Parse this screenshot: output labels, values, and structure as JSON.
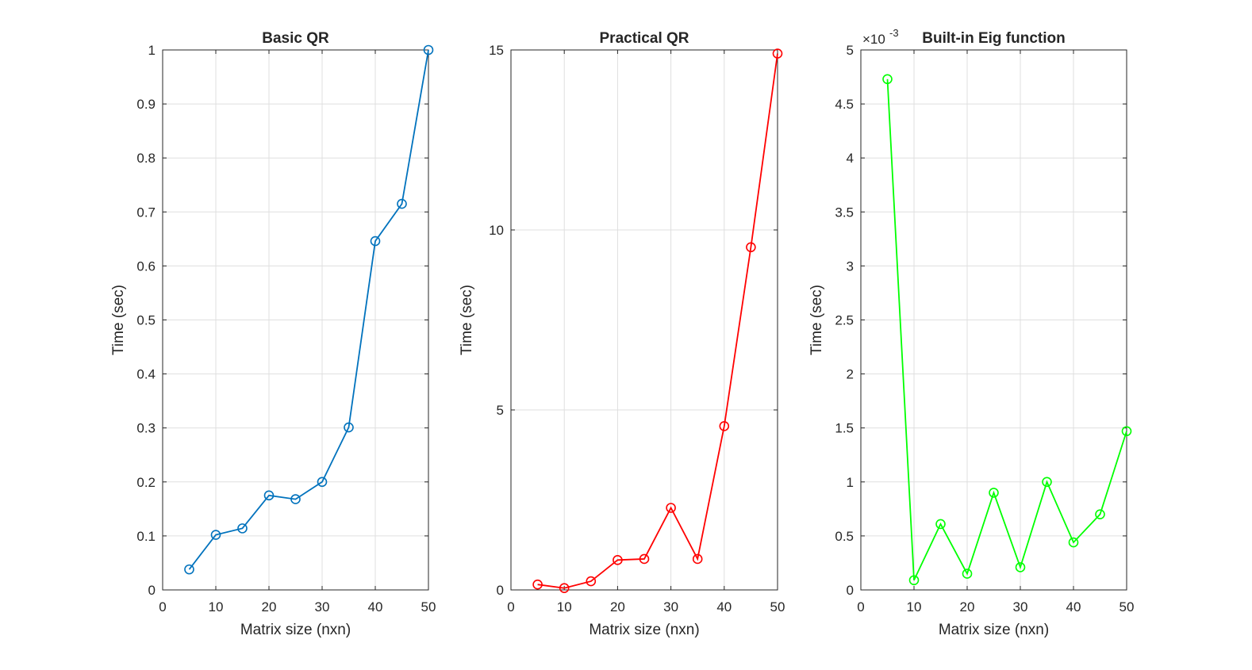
{
  "chart_data": [
    {
      "type": "line",
      "title": "Basic QR",
      "xlabel": "Matrix size (nxn)",
      "ylabel": "Time (sec)",
      "xlim": [
        0,
        50
      ],
      "ylim": [
        0,
        1
      ],
      "xticks": [
        0,
        10,
        20,
        30,
        40,
        50
      ],
      "yticks": [
        0,
        0.1,
        0.2,
        0.3,
        0.4,
        0.5,
        0.6,
        0.7,
        0.8,
        0.9,
        1
      ],
      "ytick_labels": [
        "0",
        "0.1",
        "0.2",
        "0.3",
        "0.4",
        "0.5",
        "0.6",
        "0.7",
        "0.8",
        "0.9",
        "1"
      ],
      "exponent_label": "",
      "grid": true,
      "marker": "circle",
      "series": [
        {
          "color": "#0072BD",
          "x": [
            5,
            10,
            15,
            20,
            25,
            30,
            35,
            40,
            45,
            50
          ],
          "y": [
            0.038,
            0.102,
            0.114,
            0.175,
            0.168,
            0.2,
            0.301,
            0.646,
            0.715,
            1.0
          ]
        }
      ]
    },
    {
      "type": "line",
      "title": "Practical QR",
      "xlabel": "Matrix size (nxn)",
      "ylabel": "Time (sec)",
      "xlim": [
        0,
        50
      ],
      "ylim": [
        0,
        15
      ],
      "xticks": [
        0,
        10,
        20,
        30,
        40,
        50
      ],
      "yticks": [
        0,
        5,
        10,
        15
      ],
      "ytick_labels": [
        "0",
        "5",
        "10",
        "15"
      ],
      "exponent_label": "",
      "grid": true,
      "marker": "circle",
      "series": [
        {
          "color": "#FF0000",
          "x": [
            5,
            10,
            15,
            20,
            25,
            30,
            35,
            40,
            45,
            50
          ],
          "y": [
            0.15,
            0.05,
            0.24,
            0.83,
            0.86,
            2.28,
            0.86,
            4.55,
            9.52,
            14.9
          ]
        }
      ]
    },
    {
      "type": "line",
      "title": "Built-in Eig function",
      "xlabel": "Matrix size (nxn)",
      "ylabel": "Time (sec)",
      "xlim": [
        0,
        50
      ],
      "ylim": [
        0,
        5
      ],
      "xticks": [
        0,
        10,
        20,
        30,
        40,
        50
      ],
      "yticks": [
        0,
        0.5,
        1,
        1.5,
        2,
        2.5,
        3,
        3.5,
        4,
        4.5,
        5
      ],
      "ytick_labels": [
        "0",
        "0.5",
        "1",
        "1.5",
        "2",
        "2.5",
        "3",
        "3.5",
        "4",
        "4.5",
        "5"
      ],
      "exponent_label": "×10",
      "exponent_power": "-3",
      "grid": true,
      "marker": "circle",
      "series": [
        {
          "color": "#00FF00",
          "x": [
            5,
            10,
            15,
            20,
            25,
            30,
            35,
            40,
            45,
            50
          ],
          "y": [
            4.73,
            0.09,
            0.61,
            0.15,
            0.9,
            0.21,
            1.0,
            0.44,
            0.7,
            1.47
          ]
        }
      ]
    }
  ]
}
